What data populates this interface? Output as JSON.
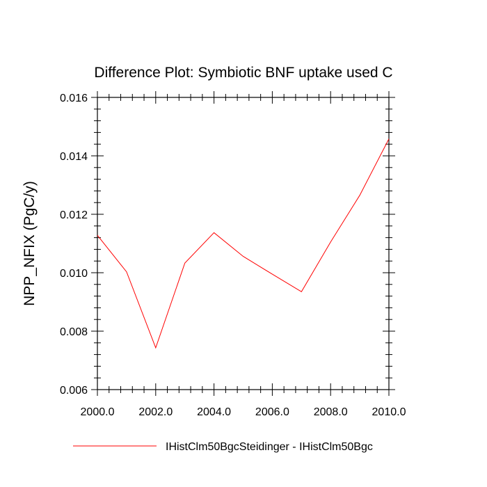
{
  "chart_data": {
    "type": "line",
    "title": "Difference Plot: Symbiotic BNF uptake used C",
    "xlabel": "",
    "ylabel": "NPP_NFIX  (PgC/y)",
    "xlim": [
      2000.0,
      2010.0
    ],
    "ylim": [
      0.006,
      0.016
    ],
    "x_ticks": [
      "2000.0",
      "2002.0",
      "2004.0",
      "2006.0",
      "2008.0",
      "2010.0"
    ],
    "x_tick_values": [
      2000,
      2002,
      2004,
      2006,
      2008,
      2010
    ],
    "y_ticks": [
      "0.006",
      "0.008",
      "0.010",
      "0.012",
      "0.014",
      "0.016"
    ],
    "y_tick_values": [
      0.006,
      0.008,
      0.01,
      0.012,
      0.014,
      0.016
    ],
    "grid": false,
    "legend_position": "bottom",
    "series": [
      {
        "name": "IHistClm50BgcSteidinger - IHistClm50Bgc",
        "color": "#ff0000",
        "x": [
          2000,
          2001,
          2002,
          2003,
          2004,
          2005,
          2006,
          2007,
          2008,
          2009,
          2010
        ],
        "y": [
          0.01128,
          0.01003,
          0.00743,
          0.01033,
          0.01137,
          0.01056,
          0.00995,
          0.00935,
          0.01105,
          0.01265,
          0.01458
        ]
      }
    ]
  }
}
